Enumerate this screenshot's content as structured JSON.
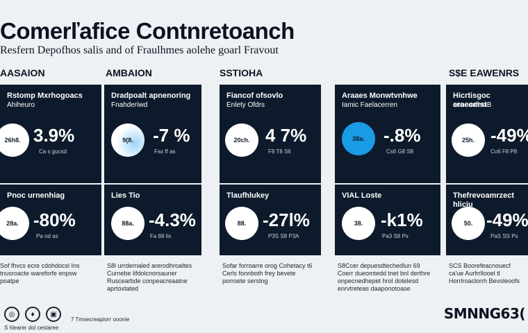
{
  "header": {
    "title": "Comerľafice Contnretoanch",
    "subtitle": "Resfern Depofhos salis and of Fraulhmes aolehe goarl Fravout"
  },
  "columns": [
    {
      "heading": "AASAION",
      "top": {
        "label": "Rstomp Mxrhogoacs",
        "label2": "Ahiheuro",
        "circle": "26h8.",
        "pct": "3.9%",
        "sub": "Ca  s  gucsd"
      },
      "bottom": {
        "label": "Pnoc urnenhiag",
        "circle": "28a.",
        "pct": "-80%",
        "sub": "Pa  nd  as"
      },
      "note": "Sof fhvcs ecre cdohdocsl Ins tnusroacte wareforfe enpsw poatpe"
    },
    {
      "heading": "AMBAION",
      "top": {
        "label": "Dradpoalt apnenoring",
        "label2": "Fnahderiwd",
        "circle": "9(8.",
        "pct": "-7 %",
        "sub": "Fax  ff  as"
      },
      "bottom": {
        "label": "Lies Tio",
        "circle": "88a.",
        "pct": "-4.3%",
        "sub": "Fa  88  lis"
      },
      "note": "S8l urrdernaled arerodhroaltes Curnebe lifdolcnorsauner Ruscearbde conpeacreaatne aprtoxtated"
    },
    {
      "heading": "SSTIOHA",
      "top": {
        "label": "Fiancof ofsovlo",
        "label2": "Enlety Ofdrs",
        "circle": "20ch.",
        "pct": "4 7%",
        "sub": "F8  T8  S6"
      },
      "bottom": {
        "label": "Tlaufhlukey",
        "circle": "88.",
        "pct": "-27l%",
        "sub": "P3S  S8  P3A"
      },
      "note": "Sofar forroarre orog Cohetacy t6 Cerls fonnboth frey bevete porroete serstng"
    },
    {
      "heading": "",
      "top": {
        "label": "Araaes Monwtvnhwe",
        "label2": "Iamic Faelacerren",
        "circle": "38a.",
        "pct": "-.8%",
        "sub": "Cs6  G8  S8"
      },
      "bottom": {
        "label": "VIAL Loste",
        "circle": "38.",
        "pct": "-k1%",
        "sub": "Pa3  S8  Ps"
      },
      "note": "S8Ccer depuesdtechedlun 69 Coerr dueomtedd tnet bnl derthre onpecnedhepet hrol dotelesd enrvtreteas daaponotoase"
    },
    {
      "heading": "S$E EAWENRS",
      "top": {
        "label": "Hicrtisgoc eraecerst",
        "label2": "anoeacfinaB",
        "circle": "25h.",
        "pct": "-49%",
        "sub": "Co6  F8  P8"
      },
      "bottom": {
        "label": "Thefrevoamrzect hliciu",
        "circle": "50.",
        "pct": "-49%",
        "sub": "PaS  SS  Ps"
      },
      "note": "SCS Boorefeacnouecf ca'ue Aurfrrllooel tl Horrlroaclorrh Bevoleoofs"
    }
  ],
  "footer": {
    "icons": [
      "globe-icon",
      "shield-icon",
      "building-icon"
    ],
    "left_text": "S hlearer dol cestaree",
    "mid_text": "7 Tmsecreapiorr ooonie",
    "brand": "SMNNG63("
  }
}
